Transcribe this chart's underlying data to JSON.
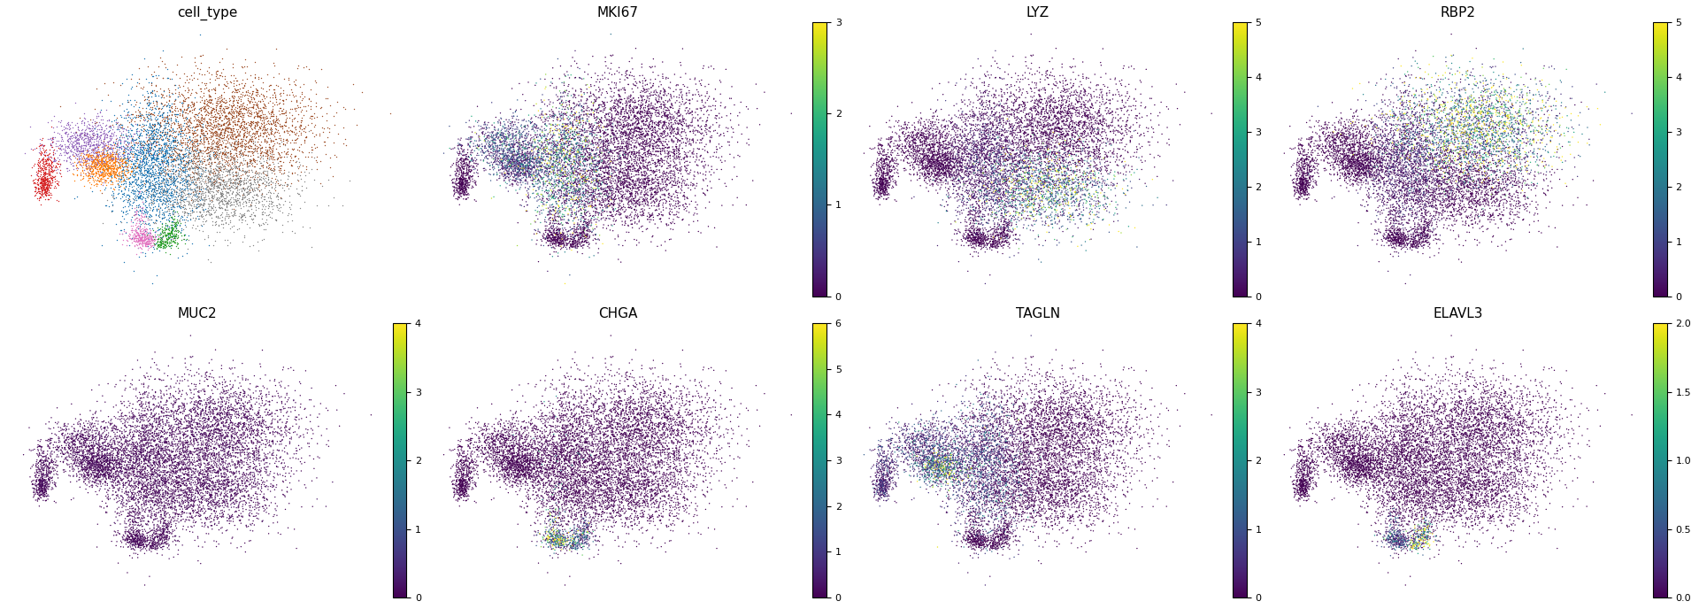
{
  "titles": [
    "cell_type",
    "MKI67",
    "LYZ",
    "RBP2",
    "MUC2",
    "CHGA",
    "TAGLN",
    "ELAVL3"
  ],
  "colorbar_ticks": {
    "MKI67": [
      0,
      1,
      2,
      3
    ],
    "LYZ": [
      0,
      1,
      2,
      3,
      4,
      5
    ],
    "RBP2": [
      0,
      1,
      2,
      3,
      4,
      5
    ],
    "MUC2": [
      0,
      1,
      2,
      3,
      4
    ],
    "CHGA": [
      0,
      1,
      2,
      3,
      4,
      5,
      6
    ],
    "TAGLN": [
      0,
      1,
      2,
      3,
      4
    ],
    "ELAVL3": [
      0.0,
      0.5,
      1.0,
      1.5,
      2.0
    ]
  },
  "vmaxes": {
    "MKI67": 3,
    "LYZ": 5,
    "RBP2": 5,
    "MUC2": 4,
    "CHGA": 6,
    "TAGLN": 4,
    "ELAVL3": 2.0
  },
  "cell_type_colors": {
    "brown": "#A0522D",
    "blue": "#1F77B4",
    "gray": "#888888",
    "purple": "#9467BD",
    "red": "#D62728",
    "orange": "#FF7F0E",
    "pink": "#E377C2",
    "green": "#2CA02C"
  },
  "n_points": 9000,
  "figsize": [
    19.2,
    6.88
  ],
  "dpi": 100,
  "point_size": 1.0
}
